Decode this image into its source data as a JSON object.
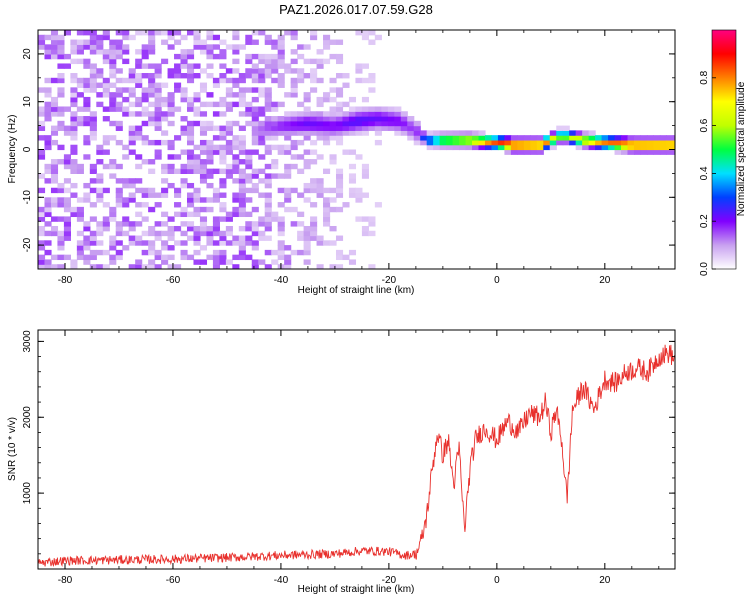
{
  "title": "PAZ1.2026.017.07.59.G28",
  "chart_data": [
    {
      "type": "heatmap",
      "name": "spectrogram",
      "xlabel": "Height of straight line (km)",
      "ylabel": "Frequency (Hz)",
      "xlim": [
        -85,
        33
      ],
      "ylim": [
        -25,
        25
      ],
      "x_ticks": [
        -80,
        -60,
        -40,
        -20,
        0,
        20
      ],
      "x_tick_labels": [
        "-80",
        "-60",
        "-40",
        "-20",
        "0",
        "20"
      ],
      "y_ticks": [
        -20,
        -10,
        0,
        10,
        20
      ],
      "y_tick_labels": [
        "-20",
        "-10",
        "0",
        "10",
        "20"
      ],
      "colorbar": {
        "label": "Normalized spectral amplitude",
        "range": [
          0,
          1
        ],
        "ticks": [
          0.0,
          0.2,
          0.4,
          0.6,
          0.8
        ],
        "tick_labels": [
          "0.0",
          "0.2",
          "0.4",
          "0.6",
          "0.8"
        ],
        "colors": [
          "#ffffff",
          "#c8a0f0",
          "#8000ff",
          "#0040ff",
          "#00e0ff",
          "#00ff40",
          "#c0ff00",
          "#ffff00",
          "#ff8000",
          "#ff0000",
          "#ff0080"
        ]
      },
      "noise_region": {
        "x_range": [
          -85,
          -14
        ],
        "y_range": [
          -25,
          25
        ],
        "typical_amplitude": 0.12
      },
      "signal_ridge": [
        {
          "x": -45,
          "y": 4,
          "amp": 0.12
        },
        {
          "x": -40,
          "y": 5,
          "amp": 0.18
        },
        {
          "x": -35,
          "y": 5.5,
          "amp": 0.22
        },
        {
          "x": -30,
          "y": 5,
          "amp": 0.2
        },
        {
          "x": -26,
          "y": 6,
          "amp": 0.24
        },
        {
          "x": -22,
          "y": 6.5,
          "amp": 0.22
        },
        {
          "x": -18,
          "y": 6,
          "amp": 0.2
        },
        {
          "x": -15,
          "y": 4,
          "amp": 0.15
        },
        {
          "x": -13,
          "y": 2,
          "amp": 0.35
        },
        {
          "x": -10,
          "y": 2,
          "amp": 0.6
        },
        {
          "x": -5,
          "y": 2,
          "amp": 0.7
        },
        {
          "x": 0,
          "y": 1.5,
          "amp": 0.85
        },
        {
          "x": 3,
          "y": 1,
          "amp": 0.95
        },
        {
          "x": 8,
          "y": 1,
          "amp": 0.9
        },
        {
          "x": 12,
          "y": 3,
          "amp": 0.55
        },
        {
          "x": 16,
          "y": 2,
          "amp": 0.7
        },
        {
          "x": 20,
          "y": 1.5,
          "amp": 0.8
        },
        {
          "x": 25,
          "y": 1,
          "amp": 0.92
        },
        {
          "x": 33,
          "y": 1,
          "amp": 0.9
        }
      ]
    },
    {
      "type": "line",
      "name": "snr",
      "xlabel": "Height of straight line (km)",
      "ylabel": "SNR (10 * v/v)",
      "xlim": [
        -85,
        33
      ],
      "ylim": [
        0,
        3150
      ],
      "x_ticks": [
        -80,
        -60,
        -40,
        -20,
        0,
        20
      ],
      "x_tick_labels": [
        "-80",
        "-60",
        "-40",
        "-20",
        "0",
        "20"
      ],
      "y_ticks": [
        1000,
        2000,
        3000
      ],
      "y_tick_labels": [
        "1000",
        "2000",
        "3000"
      ],
      "series": [
        {
          "name": "SNR",
          "color": "#e8302c",
          "x": [
            -85,
            -80,
            -70,
            -60,
            -50,
            -40,
            -30,
            -25,
            -20,
            -17,
            -15,
            -14,
            -13,
            -12,
            -11,
            -10,
            -9,
            -8,
            -7,
            -6,
            -5,
            -4,
            -3,
            -2,
            0,
            2,
            4,
            6,
            8,
            9,
            10,
            11,
            12,
            13,
            14,
            16,
            18,
            20,
            22,
            24,
            26,
            28,
            30,
            32,
            33
          ],
          "y": [
            80,
            110,
            120,
            130,
            150,
            180,
            200,
            240,
            230,
            180,
            200,
            350,
            700,
            1300,
            1800,
            1500,
            1700,
            1100,
            1600,
            500,
            1300,
            1700,
            1800,
            1850,
            1700,
            1950,
            1800,
            2050,
            2000,
            2200,
            1800,
            2100,
            1700,
            900,
            2100,
            2400,
            2100,
            2500,
            2450,
            2600,
            2650,
            2600,
            2800,
            2850,
            2750
          ],
          "noise_amplitude_low": 60,
          "noise_amplitude_high": 140
        }
      ]
    }
  ]
}
